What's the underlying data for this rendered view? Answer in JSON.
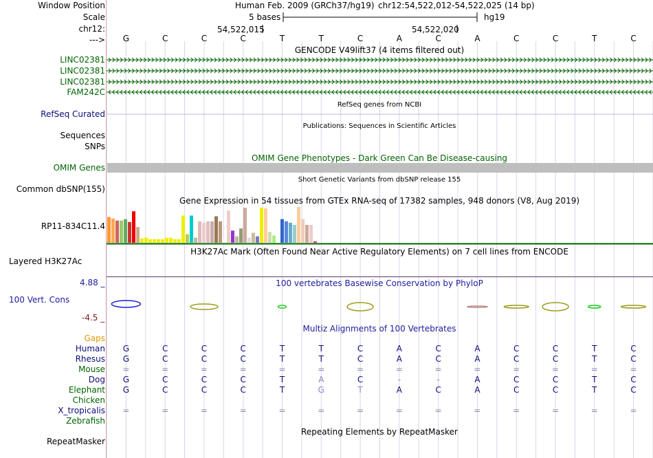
{
  "header": {
    "window_position_label": "Window Position",
    "scale_label": "Scale",
    "chr_label": "chr12:",
    "arrow_label": "--->",
    "assembly_title": "Human Feb. 2009 (GRCh37/hg19)",
    "position": "chr12:54,522,012-54,522,025 (14 bp)",
    "scale_text": "5 bases",
    "scale_db": "hg19",
    "coord_1": "54,522,015",
    "coord_2": "54,522,020"
  },
  "sequence": [
    "G",
    "C",
    "C",
    "C",
    "T",
    "T",
    "C",
    "A",
    "C",
    "A",
    "C",
    "C",
    "T",
    "C"
  ],
  "gencode": {
    "title": "GENCODE V49lift37 (4 items filtered out)",
    "genes": [
      {
        "label": "LINC02381",
        "strand": "+"
      },
      {
        "label": "LINC02381",
        "strand": "+"
      },
      {
        "label": "LINC02381",
        "strand": "+"
      },
      {
        "label": "FAM242C",
        "strand": "-"
      }
    ],
    "color": "#006400"
  },
  "refseq": {
    "label": "RefSeq Curated",
    "title": "RefSeq genes from NCBI",
    "color": "#0c0c78"
  },
  "publications": {
    "label": "Sequences",
    "title": "Publications: Sequences in Scientific Articles"
  },
  "snps_label": "SNPs",
  "omim": {
    "label": "OMIM Genes",
    "title": "OMIM Gene Phenotypes - Dark Green Can Be Disease-causing",
    "color": "#006400"
  },
  "dbsnp": {
    "label": "Common dbSNP(155)",
    "title": "Short Genetic Variants from dbSNP release 155"
  },
  "gtex": {
    "title": "Gene Expression in 54 tissues from GTEx RNA-seq of 17382 samples, 948 donors (V8, Aug 2019)",
    "gene_label": "RP11-834C11.4",
    "bars": [
      {
        "v": 0.72,
        "c": "#ff9933"
      },
      {
        "v": 0.68,
        "c": "#ffaa55"
      },
      {
        "v": 0.62,
        "c": "#cc6666"
      },
      {
        "v": 0.62,
        "c": "#99cc66"
      },
      {
        "v": 0.66,
        "c": "#66aa66"
      },
      {
        "v": 0.58,
        "c": "#cc3333"
      },
      {
        "v": 0.88,
        "c": "#ee0000"
      },
      {
        "v": 0.44,
        "c": "#ccaa88"
      },
      {
        "v": 0.12,
        "c": "#eeee00"
      },
      {
        "v": 0.14,
        "c": "#eeee00"
      },
      {
        "v": 0.1,
        "c": "#eeee00"
      },
      {
        "v": 0.1,
        "c": "#eeee00"
      },
      {
        "v": 0.1,
        "c": "#eeee00"
      },
      {
        "v": 0.1,
        "c": "#eeee00"
      },
      {
        "v": 0.14,
        "c": "#eeee00"
      },
      {
        "v": 0.14,
        "c": "#eeee00"
      },
      {
        "v": 0.1,
        "c": "#eeee00"
      },
      {
        "v": 0.1,
        "c": "#eeee00"
      },
      {
        "v": 0.76,
        "c": "#eeee00"
      },
      {
        "v": 0.24,
        "c": "#bbcc55"
      },
      {
        "v": 0.76,
        "c": "#00cccc"
      },
      {
        "v": 0.14,
        "c": "#bbbb99"
      },
      {
        "v": 0.6,
        "c": "#ddbbbb"
      },
      {
        "v": 0.56,
        "c": "#eecccc"
      },
      {
        "v": 0.6,
        "c": "#ddc0c0"
      },
      {
        "v": 0.6,
        "c": "#ccaaaa"
      },
      {
        "v": 0.74,
        "c": "#997755"
      },
      {
        "v": 0.6,
        "c": "#bb9977"
      },
      {
        "v": 0.1,
        "c": "#ffffff"
      },
      {
        "v": 0.9,
        "c": "#eecccc"
      },
      {
        "v": 0.34,
        "c": "#9933cc"
      },
      {
        "v": 0.18,
        "c": "#bbbb99"
      },
      {
        "v": 0.4,
        "c": "#999977"
      },
      {
        "v": 0.98,
        "c": "#ccaa99"
      },
      {
        "v": 0.14,
        "c": "#dddddd"
      },
      {
        "v": 0.28,
        "c": "#ccbb99"
      },
      {
        "v": 0.18,
        "c": "#7777cc"
      },
      {
        "v": 0.98,
        "c": "#eeee00"
      },
      {
        "v": 0.96,
        "c": "#ffcc99"
      },
      {
        "v": 0.3,
        "c": "#ccddaa"
      },
      {
        "v": 0.2,
        "c": "#aaee88"
      },
      {
        "v": 0.44,
        "c": "#ffffff"
      },
      {
        "v": 0.66,
        "c": "#3366cc"
      },
      {
        "v": 0.6,
        "c": "#5588dd"
      },
      {
        "v": 0.56,
        "c": "#66aacc"
      },
      {
        "v": 0.5,
        "c": "#99cccc"
      },
      {
        "v": 1.0,
        "c": "#ffcc99"
      },
      {
        "v": 0.66,
        "c": "#eeccbb"
      },
      {
        "v": 0.5,
        "c": "#ccaa99"
      },
      {
        "v": 0.5,
        "c": "#eecccc"
      },
      {
        "v": 0.04,
        "c": "#cc3399"
      }
    ]
  },
  "h3k27ac": {
    "label": "Layered H3K27Ac",
    "title": "H3K27Ac Mark (Often Found Near Active Regulatory Elements) on 7 cell lines from ENCODE"
  },
  "conservation": {
    "label": "100 Vert. Cons",
    "title": "100 vertebrates Basewise Conservation by PhyloP",
    "max": "4.88 _",
    "min": "-4.5 _",
    "color": "#1c1c9c",
    "min_color": "#7a1c1c"
  },
  "multiz": {
    "title": "Multiz Alignments of 100 Vertebrates",
    "gaps_label": "Gaps",
    "species": [
      {
        "name": "Human",
        "color": "#0c0c78",
        "seq": [
          "G",
          "C",
          "C",
          "C",
          "T",
          "T",
          "C",
          "A",
          "C",
          "A",
          "C",
          "C",
          "T",
          "C"
        ]
      },
      {
        "name": "Rhesus",
        "color": "#0c0c78",
        "seq": [
          "G",
          "C",
          "C",
          "C",
          "T",
          "T",
          "C",
          "A",
          "C",
          "A",
          "C",
          "C",
          "T",
          "C"
        ]
      },
      {
        "name": "Mouse",
        "color": "#006400",
        "seq": [
          "=",
          "=",
          "=",
          "=",
          "=",
          "=",
          "=",
          "=",
          "=",
          "=",
          "=",
          "=",
          "=",
          "="
        ]
      },
      {
        "name": "Dog",
        "color": "#0c0c78",
        "seq": [
          "G",
          "C",
          "C",
          "C",
          "T",
          "A",
          "C",
          "-",
          "-",
          "A",
          "C",
          "C",
          "T",
          "C"
        ]
      },
      {
        "name": "Elephant",
        "color": "#006400",
        "seq": [
          "G",
          "C",
          "C",
          "C",
          "T",
          "G",
          "T",
          "A",
          "C",
          "A",
          "C",
          "C",
          "T",
          "C"
        ]
      },
      {
        "name": "Chicken",
        "color": "#006400",
        "seq": [
          "",
          "",
          "",
          "",
          "",
          "",
          "",
          "",
          "",
          "",
          "",
          "",
          "",
          ""
        ]
      },
      {
        "name": "X_tropicalis",
        "color": "#0c0c78",
        "seq": [
          "=",
          "=",
          "=",
          "=",
          "=",
          "=",
          "=",
          "=",
          "=",
          "=",
          "=",
          "=",
          "=",
          "="
        ]
      },
      {
        "name": "Zebrafish",
        "color": "#006400",
        "seq": [
          "",
          "",
          "",
          "",
          "",
          "",
          "",
          "",
          "",
          "",
          "",
          "",
          "",
          ""
        ]
      }
    ]
  },
  "repeatmasker": {
    "label": "RepeatMasker",
    "title": "Repeating Elements by RepeatMasker"
  }
}
